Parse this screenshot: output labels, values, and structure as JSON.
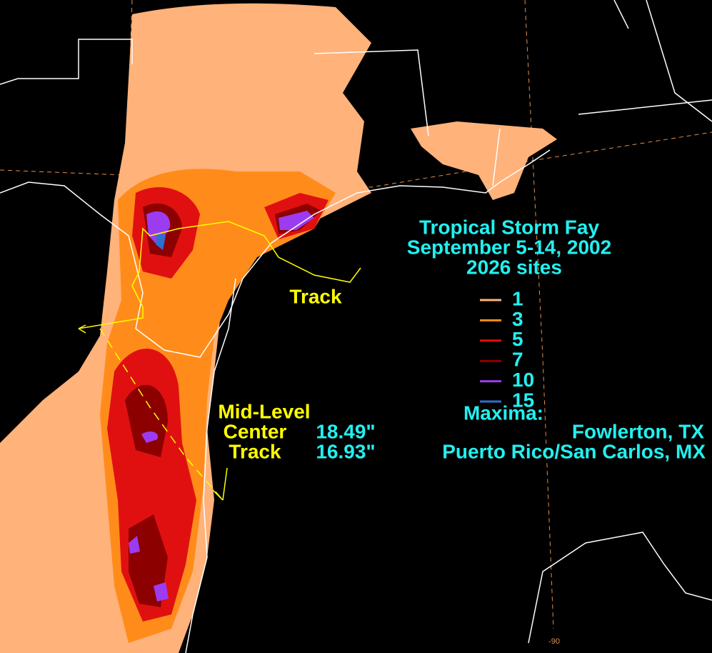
{
  "title": {
    "line1": "Tropical Storm Fay",
    "line2": "September 5-14, 2002",
    "line3": "2026 sites"
  },
  "track_label": "Track",
  "legend": [
    {
      "value": 1,
      "color": "#ffb27a"
    },
    {
      "value": 3,
      "color": "#ff8c1a"
    },
    {
      "value": 5,
      "color": "#e01010"
    },
    {
      "value": 7,
      "color": "#8c0000"
    },
    {
      "value": 10,
      "color": "#9b3cf0"
    },
    {
      "value": 15,
      "color": "#2f6fd0"
    }
  ],
  "maxima": {
    "heading": "Maxima:",
    "items": [
      {
        "value": "18.49\"",
        "place": "Fowlerton, TX"
      },
      {
        "value": "16.93\"",
        "place": "Puerto Rico/San Carlos, MX"
      }
    ]
  },
  "mid_level": {
    "line1": "Mid-Level",
    "line2": "Center",
    "line3": "Track"
  },
  "longitude_label": "-90"
}
